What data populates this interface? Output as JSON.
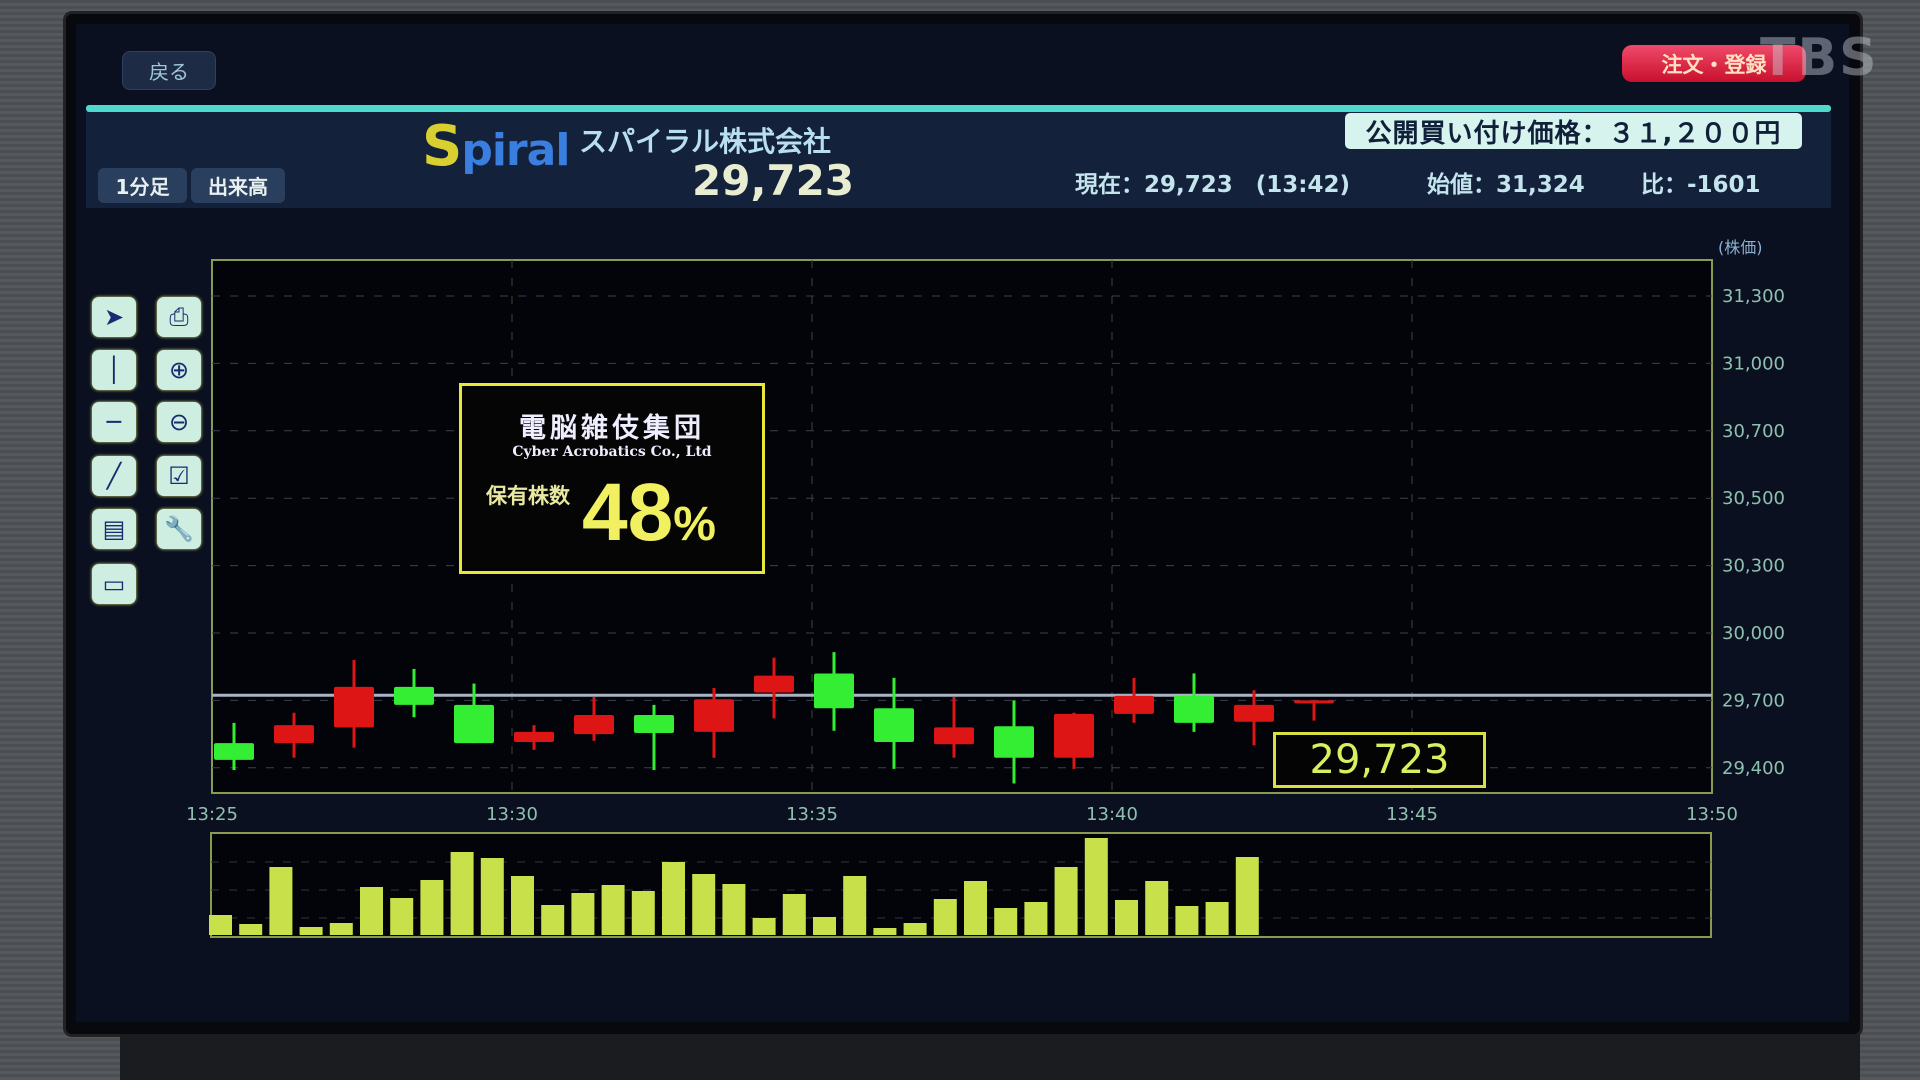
{
  "header": {
    "back_label": "戻る",
    "order_label": "注文・登録",
    "watermark": "TBS",
    "logo_text": "Spiral",
    "company_name": "スパイラル株式会社",
    "current_price": "29,723",
    "tabs": [
      {
        "label": "1分足"
      },
      {
        "label": "出来高"
      }
    ],
    "tender_offer": "公開買い付け価格：３１,２００円",
    "now": "現在：29,723　(13:42)",
    "open": "始値：31,324",
    "change": "比：-1601"
  },
  "toolbar": {
    "tools": [
      {
        "icon": "cursor-arrow-icon",
        "glyph": "➤"
      },
      {
        "icon": "new-order-icon",
        "glyph": "⎙"
      },
      {
        "icon": "vertical-line-icon",
        "glyph": "│"
      },
      {
        "icon": "zoom-in-icon",
        "glyph": "⊕"
      },
      {
        "icon": "horizontal-line-icon",
        "glyph": "─"
      },
      {
        "icon": "zoom-out-icon",
        "glyph": "⊖"
      },
      {
        "icon": "trend-line-icon",
        "glyph": "╱"
      },
      {
        "icon": "edit-check-icon",
        "glyph": "☑"
      },
      {
        "icon": "fibonacci-icon",
        "glyph": "▤"
      },
      {
        "icon": "wrench-icon",
        "glyph": "🔧"
      },
      {
        "icon": "text-icon",
        "glyph": "▭"
      }
    ]
  },
  "overlay": {
    "company_jp": "電脳雑伎集団",
    "company_en": "Cyber Acrobatics Co., Ltd",
    "holding_label": "保有株数",
    "holding_value": "48",
    "holding_unit": "%"
  },
  "price_tag": "29,723",
  "colors": {
    "up": "#33ee33",
    "down": "#dd1515",
    "volume": "#c8e04a",
    "accent": "#4fd8cc"
  },
  "chart_data": [
    {
      "type": "candlestick",
      "ylabel": "(株価)",
      "y_ticks": [
        "31,300",
        "31,000",
        "30,700",
        "30,500",
        "30,300",
        "30,000",
        "29,700",
        "29,400"
      ],
      "y_tick_values": [
        31300,
        31000,
        30700,
        30500,
        30300,
        30000,
        29700,
        29400
      ],
      "x_ticks": [
        "13:25",
        "13:30",
        "13:35",
        "13:40",
        "13:45",
        "13:50"
      ],
      "grid": true,
      "current_line": 29723,
      "candles": [
        {
          "t": "13:25",
          "o": 29435,
          "h": 29600,
          "l": 29390,
          "c": 29510
        },
        {
          "t": "13:26",
          "o": 29590,
          "h": 29645,
          "l": 29445,
          "c": 29510
        },
        {
          "t": "13:27",
          "o": 29760,
          "h": 29880,
          "l": 29490,
          "c": 29580
        },
        {
          "t": "13:28",
          "o": 29680,
          "h": 29840,
          "l": 29625,
          "c": 29760
        },
        {
          "t": "13:29",
          "o": 29510,
          "h": 29775,
          "l": 29510,
          "c": 29680
        },
        {
          "t": "13:30",
          "o": 29560,
          "h": 29590,
          "l": 29480,
          "c": 29515
        },
        {
          "t": "13:31",
          "o": 29635,
          "h": 29715,
          "l": 29520,
          "c": 29550
        },
        {
          "t": "13:32",
          "o": 29555,
          "h": 29680,
          "l": 29390,
          "c": 29635
        },
        {
          "t": "13:33",
          "o": 29705,
          "h": 29755,
          "l": 29445,
          "c": 29560
        },
        {
          "t": "13:34",
          "o": 29810,
          "h": 29890,
          "l": 29620,
          "c": 29735
        },
        {
          "t": "13:35",
          "o": 29665,
          "h": 29915,
          "l": 29565,
          "c": 29820
        },
        {
          "t": "13:36",
          "o": 29515,
          "h": 29800,
          "l": 29395,
          "c": 29665
        },
        {
          "t": "13:37",
          "o": 29580,
          "h": 29715,
          "l": 29445,
          "c": 29505
        },
        {
          "t": "13:38",
          "o": 29445,
          "h": 29700,
          "l": 29330,
          "c": 29585
        },
        {
          "t": "13:39",
          "o": 29640,
          "h": 29645,
          "l": 29395,
          "c": 29445
        },
        {
          "t": "13:40",
          "o": 29720,
          "h": 29800,
          "l": 29600,
          "c": 29640
        },
        {
          "t": "13:41",
          "o": 29600,
          "h": 29820,
          "l": 29560,
          "c": 29720
        },
        {
          "t": "13:42",
          "o": 29680,
          "h": 29745,
          "l": 29500,
          "c": 29605
        },
        {
          "t": "13:43",
          "o": 29700,
          "h": 29700,
          "l": 29610,
          "c": 29690
        }
      ]
    },
    {
      "type": "bar",
      "series_label": "出来高",
      "values_relative_percent": [
        20,
        11,
        68,
        8,
        12,
        48,
        37,
        55,
        83,
        77,
        59,
        30,
        42,
        50,
        44,
        73,
        61,
        51,
        17,
        41,
        18,
        59,
        7,
        12,
        36,
        54,
        27,
        33,
        68,
        97,
        35,
        54,
        29,
        33,
        78
      ],
      "grid": true
    }
  ]
}
